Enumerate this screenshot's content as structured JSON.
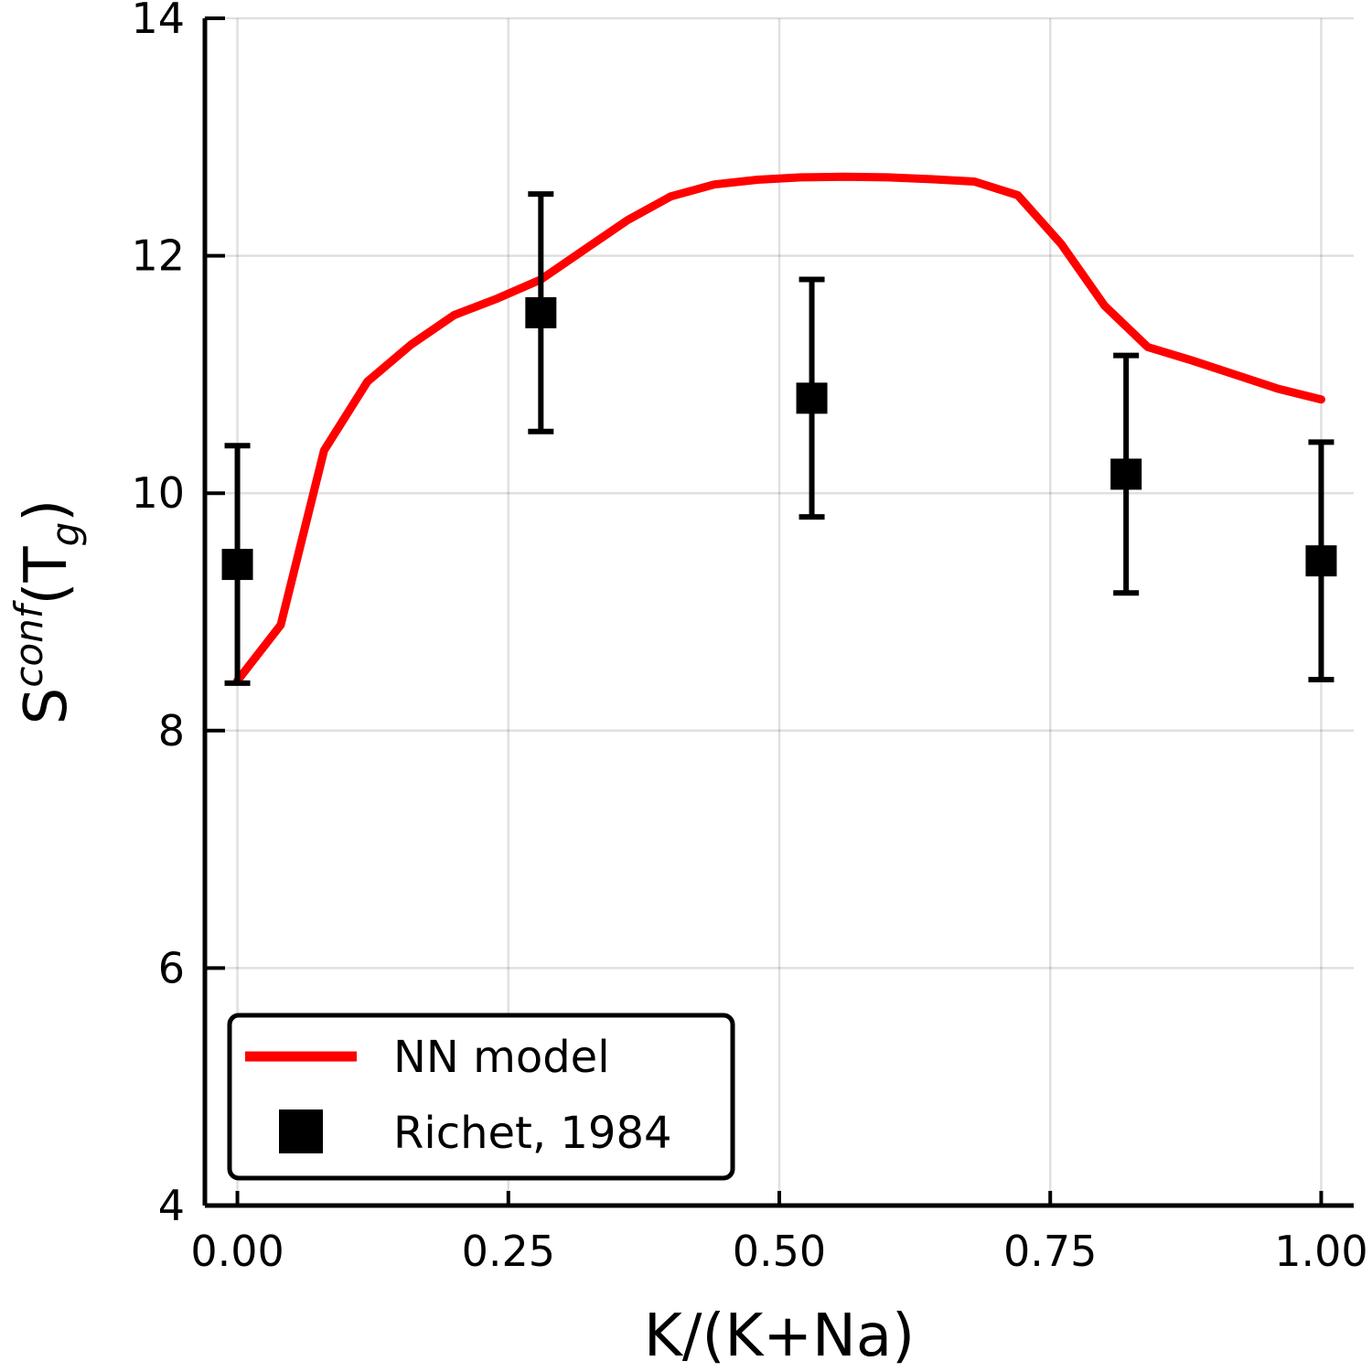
{
  "chart_data": {
    "type": "line",
    "xlabel": "K/(K+Na)",
    "ylabel": {
      "base": "S",
      "superscript": "conf",
      "open": "(T",
      "subscript": "g",
      "close": ")"
    },
    "xlim": [
      -0.03,
      1.03
    ],
    "ylim": [
      4,
      14
    ],
    "grid": true,
    "legend_placement": "bottom-left",
    "xticks": [
      {
        "value": 0.0,
        "label": "0.00"
      },
      {
        "value": 0.25,
        "label": "0.25"
      },
      {
        "value": 0.5,
        "label": "0.50"
      },
      {
        "value": 0.75,
        "label": "0.75"
      },
      {
        "value": 1.0,
        "label": "1.00"
      }
    ],
    "yticks": [
      {
        "value": 4,
        "label": "4"
      },
      {
        "value": 6,
        "label": "6"
      },
      {
        "value": 8,
        "label": "8"
      },
      {
        "value": 10,
        "label": "10"
      },
      {
        "value": 12,
        "label": "12"
      },
      {
        "value": 14,
        "label": "14"
      }
    ],
    "series": [
      {
        "name": "NN model",
        "kind": "line",
        "color": "#ff0000",
        "x": [
          0.0,
          0.04,
          0.08,
          0.12,
          0.16,
          0.2,
          0.24,
          0.28,
          0.32,
          0.36,
          0.4,
          0.44,
          0.48,
          0.52,
          0.56,
          0.6,
          0.64,
          0.68,
          0.72,
          0.76,
          0.8,
          0.84,
          0.88,
          0.92,
          0.96,
          1.0
        ],
        "y": [
          8.42,
          8.89,
          10.36,
          10.94,
          11.25,
          11.5,
          11.64,
          11.8,
          12.05,
          12.3,
          12.5,
          12.6,
          12.64,
          12.66,
          12.665,
          12.66,
          12.645,
          12.625,
          12.51,
          12.1,
          11.58,
          11.23,
          11.12,
          11.0,
          10.88,
          10.79
        ]
      },
      {
        "name": "Richet, 1984",
        "kind": "scatter-errorbar",
        "color": "#000000",
        "x": [
          0.0,
          0.28,
          0.53,
          0.82,
          1.0
        ],
        "y": [
          9.4,
          11.52,
          10.8,
          10.16,
          9.43
        ],
        "err": [
          1.0,
          1.0,
          1.0,
          1.0,
          1.0
        ]
      }
    ]
  }
}
